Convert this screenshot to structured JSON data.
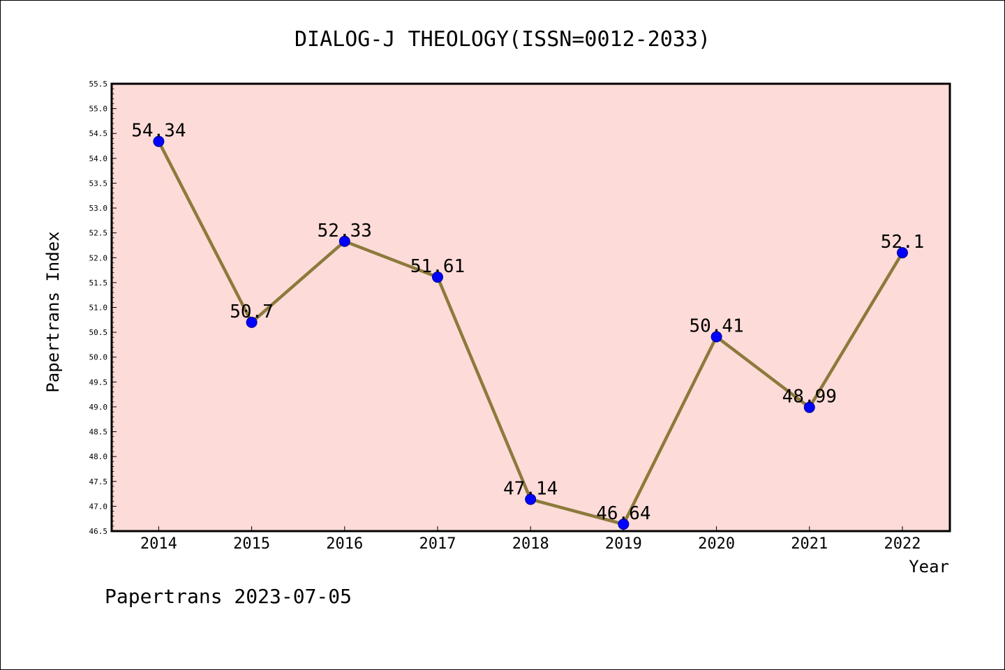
{
  "chart_data": {
    "type": "line",
    "title": "DIALOG-J THEOLOGY(ISSN=0012-2033)",
    "xlabel": "Year",
    "ylabel": "Papertrans Index",
    "categories": [
      "2014",
      "2015",
      "2016",
      "2017",
      "2018",
      "2019",
      "2020",
      "2021",
      "2022"
    ],
    "values": [
      54.34,
      50.7,
      52.33,
      51.61,
      47.14,
      46.64,
      50.41,
      48.99,
      52.1
    ],
    "data_labels": [
      "54.34",
      "50.7",
      "52.33",
      "51.61",
      "47.14",
      "46.64",
      "50.41",
      "48.99",
      "52.1"
    ],
    "ylim": [
      46.5,
      55.5
    ],
    "yticks": [
      "46.5",
      "47.0",
      "47.5",
      "48.0",
      "48.5",
      "49.0",
      "49.5",
      "50.0",
      "50.5",
      "51.0",
      "51.5",
      "52.0",
      "52.5",
      "53.0",
      "53.5",
      "54.0",
      "54.5",
      "55.0",
      "55.5"
    ],
    "grid": false,
    "colors": {
      "plot_background": "#fddbd8",
      "line": "#8c7a3c",
      "marker": "#0000ff"
    }
  },
  "footer": "Papertrans 2023-07-05"
}
